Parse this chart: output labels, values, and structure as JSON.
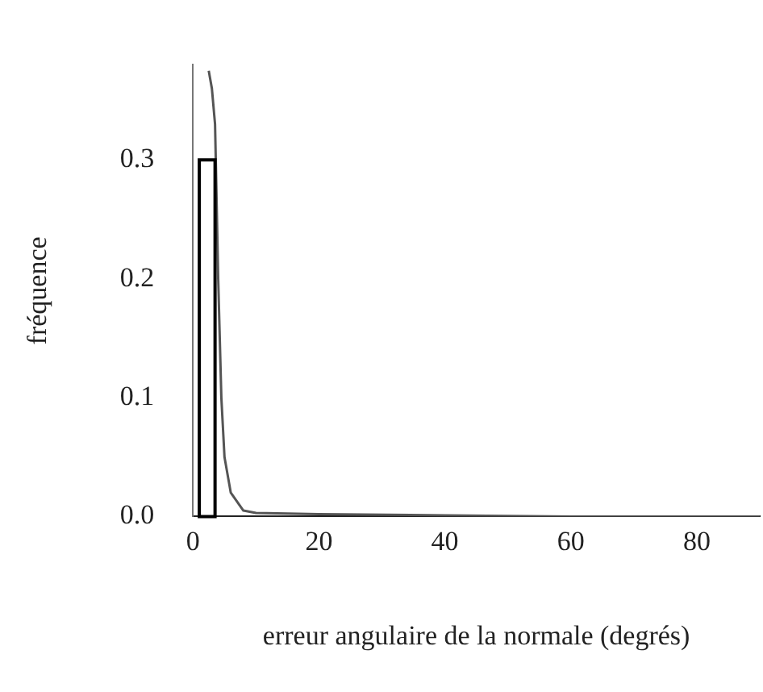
{
  "chart_data": {
    "type": "histogram",
    "xlabel": "erreur angulaire de la normale (degrés)",
    "ylabel": "fréquence",
    "xlim": [
      0,
      90
    ],
    "ylim": [
      0,
      0.38
    ],
    "xticks": [
      0,
      20,
      40,
      60,
      80
    ],
    "yticks": [
      {
        "value": 0,
        "label": "0.0"
      },
      0.1,
      0.2,
      0.3
    ],
    "grid": false,
    "legend": false,
    "series": [
      {
        "color": "#000000",
        "bins": [
          1,
          3.5
        ],
        "values": [
          0.3
        ]
      },
      {
        "type": "line",
        "color": "#555555",
        "x": [
          2.5,
          3,
          3.5,
          4,
          4.5,
          5,
          6,
          8,
          10,
          20,
          40,
          60,
          80,
          90
        ],
        "values": [
          0.375,
          0.36,
          0.33,
          0.2,
          0.1,
          0.05,
          0.02,
          0.005,
          0.003,
          0.002,
          0.001,
          0,
          0,
          0
        ]
      }
    ]
  }
}
